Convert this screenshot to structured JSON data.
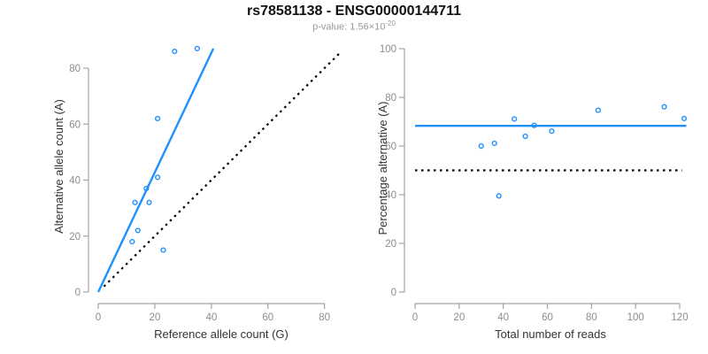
{
  "header": {
    "title": "rs78581138 - ENSG00000144711",
    "pvalue_label": "p-value: 1.56×10",
    "pvalue_exponent": "-20"
  },
  "colors": {
    "accent_blue": "#1E90FF",
    "line_black": "#000000",
    "axis_line": "#a3a3a3",
    "tick_text": "#8c8c8c",
    "subtitle_gray": "#999999"
  },
  "chart_data": [
    {
      "type": "scatter",
      "xlabel": "Reference allele count (G)",
      "ylabel": "Alternative allele count (A)",
      "xticks": [
        0,
        20,
        40,
        60,
        80
      ],
      "yticks": [
        0,
        20,
        40,
        60,
        80
      ],
      "xlim": [
        0,
        80
      ],
      "ylim": [
        0,
        88
      ],
      "grid": false,
      "points": [
        [
          27,
          86
        ],
        [
          35,
          87
        ],
        [
          21,
          62
        ],
        [
          21,
          41
        ],
        [
          17,
          37
        ],
        [
          13,
          32
        ],
        [
          18,
          32
        ],
        [
          14,
          22
        ],
        [
          12,
          18
        ],
        [
          23,
          15
        ]
      ],
      "lines": [
        {
          "name": "regression-line",
          "x1": 0,
          "y1": 0,
          "x2": 40.7,
          "y2": 87,
          "color": "#1E90FF",
          "dash": "solid",
          "width": 2.4
        },
        {
          "name": "identity-line",
          "x1": 2,
          "y1": 2,
          "x2": 86,
          "y2": 86,
          "color": "#000000",
          "dash": "dotted",
          "width": 2.2
        }
      ]
    },
    {
      "type": "scatter",
      "xlabel": "Total number of reads",
      "ylabel": "Percentage alternative (A)",
      "xticks": [
        0,
        20,
        40,
        60,
        80,
        100,
        120
      ],
      "yticks": [
        0,
        20,
        40,
        60,
        80,
        100
      ],
      "xlim": [
        0,
        123
      ],
      "ylim": [
        0,
        100
      ],
      "grid": false,
      "points": [
        [
          30,
          60
        ],
        [
          36,
          61.1
        ],
        [
          38,
          39.5
        ],
        [
          45,
          71.1
        ],
        [
          50,
          64
        ],
        [
          54,
          68.5
        ],
        [
          62,
          66.1
        ],
        [
          83,
          74.7
        ],
        [
          113,
          76.1
        ],
        [
          122,
          71.3
        ]
      ],
      "lines": [
        {
          "name": "mean-percentage-line",
          "x1": 0,
          "y1": 68.3,
          "x2": 123,
          "y2": 68.3,
          "color": "#1E90FF",
          "dash": "solid",
          "width": 2.4
        },
        {
          "name": "fifty-percent-reference-line",
          "x1": 0,
          "y1": 50,
          "x2": 121,
          "y2": 50,
          "color": "#000000",
          "dash": "dotted",
          "width": 2.2
        }
      ]
    }
  ]
}
